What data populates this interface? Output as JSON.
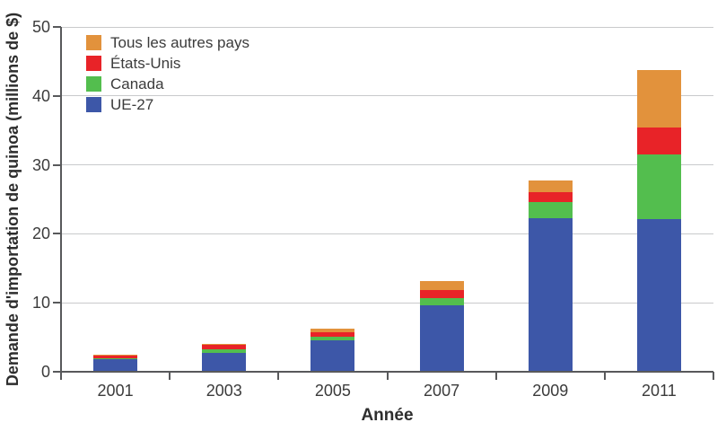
{
  "chart_data": {
    "type": "bar",
    "stacked": true,
    "xlabel": "Année",
    "ylabel": "Demande d'importation de quinoa (millions de $)",
    "categories": [
      "2001",
      "2003",
      "2005",
      "2007",
      "2009",
      "2011"
    ],
    "series": [
      {
        "name": "UE-27",
        "color": "#3d57a8",
        "values": [
          1.8,
          2.8,
          4.6,
          9.7,
          22.3,
          22.2
        ]
      },
      {
        "name": "Canada",
        "color": "#53be4e",
        "values": [
          0.2,
          0.4,
          0.5,
          1.0,
          2.3,
          9.3
        ]
      },
      {
        "name": "États-Unis",
        "color": "#e82328",
        "values": [
          0.3,
          0.8,
          0.6,
          1.2,
          1.4,
          3.9
        ]
      },
      {
        "name": "Tous les autres pays",
        "color": "#e2923c",
        "values": [
          0.15,
          0.1,
          0.6,
          1.3,
          1.8,
          8.3
        ]
      }
    ],
    "totals": [
      2.45,
      4.1,
      6.3,
      13.2,
      27.8,
      43.7
    ],
    "legend": {
      "position": "top-left",
      "order_top_to_bottom": [
        "Tous les autres pays",
        "États-Unis",
        "Canada",
        "UE-27"
      ]
    },
    "ylim": [
      0,
      50
    ],
    "yticks": [
      0,
      10,
      20,
      30,
      40,
      50
    ],
    "grid": true
  },
  "style": {
    "axis_color": "#58595b",
    "gridline_color": "#c9cacc",
    "text_color": "#3b3b3b",
    "background": "#ffffff"
  }
}
